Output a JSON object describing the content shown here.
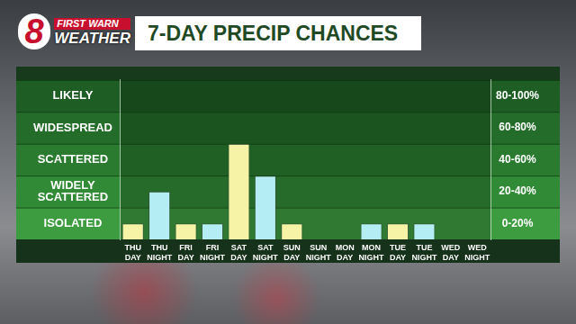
{
  "header": {
    "logo": {
      "number": "8",
      "line1": "FIRST WARN",
      "line2": "WEATHER"
    },
    "title": "7-DAY PRECIP CHANCES"
  },
  "chart_data": {
    "type": "bar",
    "categories": [
      "THU DAY",
      "THU NIGHT",
      "FRI DAY",
      "FRI NIGHT",
      "SAT DAY",
      "SAT NIGHT",
      "SUN DAY",
      "SUN NIGHT",
      "MON DAY",
      "MON NIGHT",
      "TUE DAY",
      "TUE NIGHT",
      "WED DAY",
      "WED NIGHT"
    ],
    "values": [
      10,
      30,
      10,
      10,
      60,
      40,
      10,
      0,
      0,
      10,
      10,
      10,
      0,
      0
    ],
    "colors": [
      "#f6f3a6",
      "#b4eef4",
      "#f6f3a6",
      "#b4eef4",
      "#f6f3a6",
      "#b4eef4",
      "#f6f3a6",
      "#b4eef4",
      "#f6f3a6",
      "#b4eef4",
      "#f6f3a6",
      "#b4eef4",
      "#f6f3a6",
      "#b4eef4"
    ],
    "ylim": [
      0,
      100
    ],
    "yticks": [
      {
        "value": 10,
        "label": "ISOLATED"
      },
      {
        "value": 30,
        "label": "WIDELY SCATTERED"
      },
      {
        "value": 50,
        "label": "SCATTERED"
      },
      {
        "value": 70,
        "label": "WIDESPREAD"
      },
      {
        "value": 90,
        "label": "LIKELY"
      }
    ],
    "y2lim": [
      0,
      100
    ],
    "y2ticks": [
      {
        "value": 10,
        "label": "0-20%"
      },
      {
        "value": 30,
        "label": "20-40%"
      },
      {
        "value": 50,
        "label": "40-60%"
      },
      {
        "value": 70,
        "label": "60-80%"
      },
      {
        "value": 90,
        "label": "80-100%"
      }
    ],
    "grid": false
  }
}
